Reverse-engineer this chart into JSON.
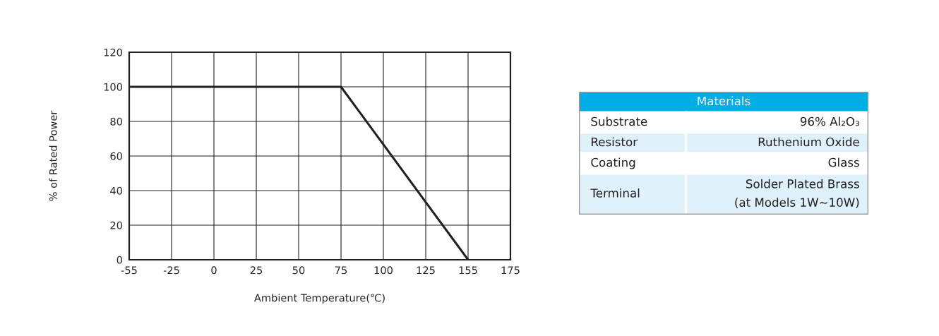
{
  "chart_data": [
    {
      "type": "line",
      "xlabel": "Ambient Temperature(℃)",
      "ylabel": "% of Rated Power",
      "categories": [
        "-55",
        "-25",
        "0",
        "25",
        "50",
        "75",
        "100",
        "125",
        "155",
        "175"
      ],
      "series": [
        {
          "color": "#231f20",
          "values": [
            100,
            100,
            100,
            100,
            100,
            100,
            66.7,
            33.3,
            0,
            null
          ]
        }
      ],
      "ylim": [
        0,
        120
      ],
      "yticks": [
        0,
        20,
        40,
        60,
        80,
        100,
        120
      ],
      "grid": true,
      "marker": "none",
      "line_style": "solid"
    },
    {
      "type": "other",
      "title": "Materials",
      "categories": [
        "Substrate",
        "Resistor",
        "Coating",
        "Terminal"
      ],
      "annotations": [
        "96% Al₂O₃",
        "Ruthenium Oxide",
        "Glass",
        "Solder Plated Brass\n(at Models 1W~10W)"
      ]
    }
  ]
}
